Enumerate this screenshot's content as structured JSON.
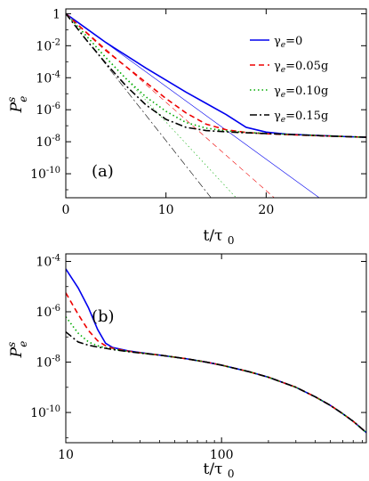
{
  "chart_data": [
    {
      "type": "line",
      "panel_label": "(a)",
      "xlabel": "t/τ0",
      "ylabel": "P_e^s",
      "xscale": "linear",
      "yscale": "log",
      "xlim": [
        0,
        30
      ],
      "ylim_exponent": [
        -11.5,
        0.3
      ],
      "x_ticks": [
        {
          "value": 0,
          "label": "0"
        },
        {
          "value": 10,
          "label": "10"
        },
        {
          "value": 20,
          "label": "20"
        }
      ],
      "y_ticks": [
        {
          "exp": 0,
          "base": "1",
          "sup": ""
        },
        {
          "exp": -2,
          "base": "10",
          "sup": "-2"
        },
        {
          "exp": -4,
          "base": "10",
          "sup": "-4"
        },
        {
          "exp": -6,
          "base": "10",
          "sup": "-6"
        },
        {
          "exp": -8,
          "base": "10",
          "sup": "-8"
        },
        {
          "exp": -10,
          "base": "10",
          "sup": "-10"
        }
      ],
      "legend_position": "top-right",
      "series": [
        {
          "name": "γe=0",
          "name_base": "γ",
          "name_sub": "e",
          "name_rest": "=0",
          "color": "#0000ee",
          "dash": "",
          "x": [
            0,
            2,
            4,
            6,
            8,
            10,
            12,
            14,
            16,
            18,
            20,
            22,
            24,
            26,
            28,
            30
          ],
          "log10_y": [
            0,
            -0.9,
            -1.8,
            -2.6,
            -3.4,
            -4.15,
            -4.9,
            -5.6,
            -6.3,
            -7.1,
            -7.4,
            -7.52,
            -7.58,
            -7.63,
            -7.68,
            -7.72
          ],
          "asymptote": {
            "x": [
              0,
              25.3
            ],
            "log10_y": [
              0,
              -11.5
            ]
          }
        },
        {
          "name": "γe=0.05g",
          "name_base": "γ",
          "name_sub": "e",
          "name_rest": "=0.05g",
          "color": "#ee0000",
          "dash": "6,4",
          "x": [
            0,
            2,
            4,
            6,
            8,
            10,
            12,
            14,
            16,
            18,
            20,
            22,
            24,
            26,
            28,
            30
          ],
          "log10_y": [
            0,
            -1.15,
            -2.3,
            -3.3,
            -4.3,
            -5.3,
            -6.2,
            -6.9,
            -7.25,
            -7.42,
            -7.5,
            -7.55,
            -7.6,
            -7.64,
            -7.68,
            -7.72
          ],
          "asymptote": {
            "x": [
              0,
              20.8
            ],
            "log10_y": [
              0,
              -11.5
            ]
          }
        },
        {
          "name": "γe=0.10g",
          "name_base": "γ",
          "name_sub": "e",
          "name_rest": "=0.10g",
          "color": "#00aa00",
          "dash": "1.5,3",
          "x": [
            0,
            2,
            4,
            6,
            8,
            10,
            12,
            14,
            16,
            18,
            20,
            22,
            24,
            26,
            28,
            30
          ],
          "log10_y": [
            0,
            -1.35,
            -2.75,
            -4.05,
            -5.2,
            -6.1,
            -6.8,
            -7.15,
            -7.32,
            -7.42,
            -7.48,
            -7.53,
            -7.58,
            -7.63,
            -7.68,
            -7.72
          ],
          "asymptote": {
            "x": [
              0,
              17.0
            ],
            "log10_y": [
              0,
              -11.5
            ]
          }
        },
        {
          "name": "γe=0.15g",
          "name_base": "γ",
          "name_sub": "e",
          "name_rest": "=0.15g",
          "color": "#000000",
          "dash": "8,3,2,3",
          "x": [
            0,
            2,
            4,
            6,
            8,
            10,
            12,
            14,
            16,
            18,
            20,
            22,
            24,
            26,
            28,
            30
          ],
          "log10_y": [
            0,
            -1.6,
            -3.1,
            -4.5,
            -5.7,
            -6.6,
            -7.1,
            -7.3,
            -7.38,
            -7.44,
            -7.49,
            -7.54,
            -7.59,
            -7.64,
            -7.68,
            -7.72
          ],
          "asymptote": {
            "x": [
              0,
              14.5
            ],
            "log10_y": [
              0,
              -11.5
            ]
          }
        }
      ]
    },
    {
      "type": "line",
      "panel_label": "(b)",
      "xlabel": "t/τ0",
      "ylabel": "P_e^s",
      "xscale": "log",
      "yscale": "log",
      "xlim": [
        10,
        850
      ],
      "ylim_exponent": [
        -11.2,
        -3.7
      ],
      "x_ticks": [
        {
          "value": 10,
          "label": "10"
        },
        {
          "value": 100,
          "label": "100"
        }
      ],
      "y_ticks": [
        {
          "exp": -4,
          "base": "10",
          "sup": "-4"
        },
        {
          "exp": -6,
          "base": "10",
          "sup": "-6"
        },
        {
          "exp": -8,
          "base": "10",
          "sup": "-8"
        },
        {
          "exp": -10,
          "base": "10",
          "sup": "-10"
        }
      ],
      "series": [
        {
          "color": "#0000ee",
          "dash": "",
          "x": [
            10,
            12,
            14,
            16,
            18,
            20,
            25,
            30,
            40,
            60,
            80,
            100,
            150,
            200,
            300,
            400,
            500,
            600,
            700,
            850
          ],
          "log10_y": [
            -4.3,
            -5.05,
            -5.85,
            -6.7,
            -7.25,
            -7.42,
            -7.55,
            -7.62,
            -7.72,
            -7.87,
            -8.0,
            -8.12,
            -8.38,
            -8.6,
            -9.0,
            -9.38,
            -9.72,
            -10.05,
            -10.35,
            -10.8
          ]
        },
        {
          "color": "#ee0000",
          "dash": "6,4",
          "x": [
            10,
            12,
            14,
            16,
            18,
            20,
            25,
            30,
            40,
            60,
            80,
            100,
            150,
            200,
            300,
            400,
            500,
            600,
            700,
            850
          ],
          "log10_y": [
            -5.25,
            -6.1,
            -6.75,
            -7.15,
            -7.35,
            -7.45,
            -7.56,
            -7.63,
            -7.72,
            -7.87,
            -8.0,
            -8.12,
            -8.38,
            -8.6,
            -9.0,
            -9.38,
            -9.72,
            -10.05,
            -10.35,
            -10.8
          ]
        },
        {
          "color": "#00aa00",
          "dash": "1.5,3",
          "x": [
            10,
            12,
            14,
            16,
            18,
            20,
            25,
            30,
            40,
            60,
            80,
            100,
            150,
            200,
            300,
            400,
            500,
            600,
            700,
            850
          ],
          "log10_y": [
            -6.2,
            -6.85,
            -7.2,
            -7.35,
            -7.43,
            -7.48,
            -7.57,
            -7.63,
            -7.72,
            -7.87,
            -8.0,
            -8.12,
            -8.38,
            -8.6,
            -9.0,
            -9.38,
            -9.72,
            -10.05,
            -10.35,
            -10.8
          ]
        },
        {
          "color": "#000000",
          "dash": "8,3,2,3",
          "x": [
            10,
            12,
            14,
            16,
            18,
            20,
            25,
            30,
            40,
            60,
            80,
            100,
            150,
            200,
            300,
            400,
            500,
            600,
            700,
            850
          ],
          "log10_y": [
            -6.8,
            -7.2,
            -7.33,
            -7.4,
            -7.45,
            -7.5,
            -7.58,
            -7.64,
            -7.72,
            -7.87,
            -8.0,
            -8.12,
            -8.38,
            -8.6,
            -9.0,
            -9.38,
            -9.72,
            -10.05,
            -10.35,
            -10.8
          ]
        }
      ]
    }
  ]
}
